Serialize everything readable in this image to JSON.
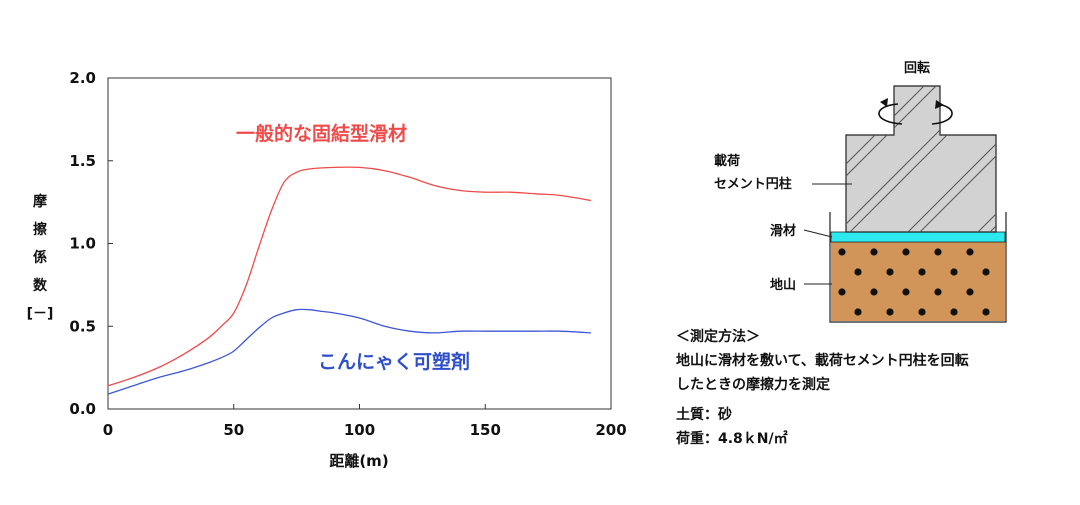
{
  "chart_data": {
    "type": "line",
    "xlabel": "距離(m)",
    "ylabel_chars": [
      "摩",
      "擦",
      "係",
      "数",
      "[－]"
    ],
    "xlim": [
      0,
      200
    ],
    "ylim": [
      0.0,
      2.0
    ],
    "x_ticks": [
      "0",
      "50",
      "100",
      "150",
      "200"
    ],
    "y_ticks": [
      "0.0",
      "0.5",
      "1.0",
      "1.5",
      "2.0"
    ],
    "grid": false,
    "series": [
      {
        "name": "一般的な固結型滑材",
        "color": "#ef4b4b",
        "x": [
          0,
          10,
          20,
          30,
          40,
          45,
          50,
          55,
          60,
          65,
          70,
          75,
          80,
          90,
          100,
          110,
          120,
          130,
          140,
          150,
          160,
          170,
          180,
          192
        ],
        "y": [
          0.14,
          0.19,
          0.25,
          0.33,
          0.43,
          0.5,
          0.58,
          0.75,
          0.98,
          1.2,
          1.37,
          1.43,
          1.45,
          1.46,
          1.46,
          1.44,
          1.4,
          1.35,
          1.32,
          1.31,
          1.31,
          1.3,
          1.29,
          1.26
        ]
      },
      {
        "name": "こんにゃく可塑剤",
        "color": "#3d57d6",
        "x": [
          0,
          10,
          20,
          30,
          40,
          45,
          50,
          55,
          60,
          65,
          70,
          75,
          80,
          85,
          90,
          100,
          110,
          120,
          130,
          140,
          150,
          160,
          170,
          180,
          192
        ],
        "y": [
          0.09,
          0.14,
          0.19,
          0.23,
          0.28,
          0.31,
          0.35,
          0.42,
          0.49,
          0.55,
          0.58,
          0.6,
          0.6,
          0.59,
          0.58,
          0.55,
          0.5,
          0.47,
          0.46,
          0.47,
          0.47,
          0.47,
          0.47,
          0.47,
          0.46
        ]
      }
    ]
  },
  "diagram": {
    "rotation_label": "回転",
    "load_label_line1": "載荷",
    "load_label_line2": "セメント円柱",
    "lubricant_label": "滑材",
    "ground_label": "地山",
    "colors": {
      "cylinder": "#d2d2d2",
      "lubricant": "#2ee8f0",
      "ground": "#d1955a",
      "dots": "#111111"
    }
  },
  "method": {
    "heading": "＜測定方法＞",
    "line1": "地山に滑材を敷いて、載荷セメント円柱を回転",
    "line2": "したときの摩擦力を測定",
    "soil": "土質：砂",
    "load": "荷重：4.8ｋN/㎡"
  }
}
